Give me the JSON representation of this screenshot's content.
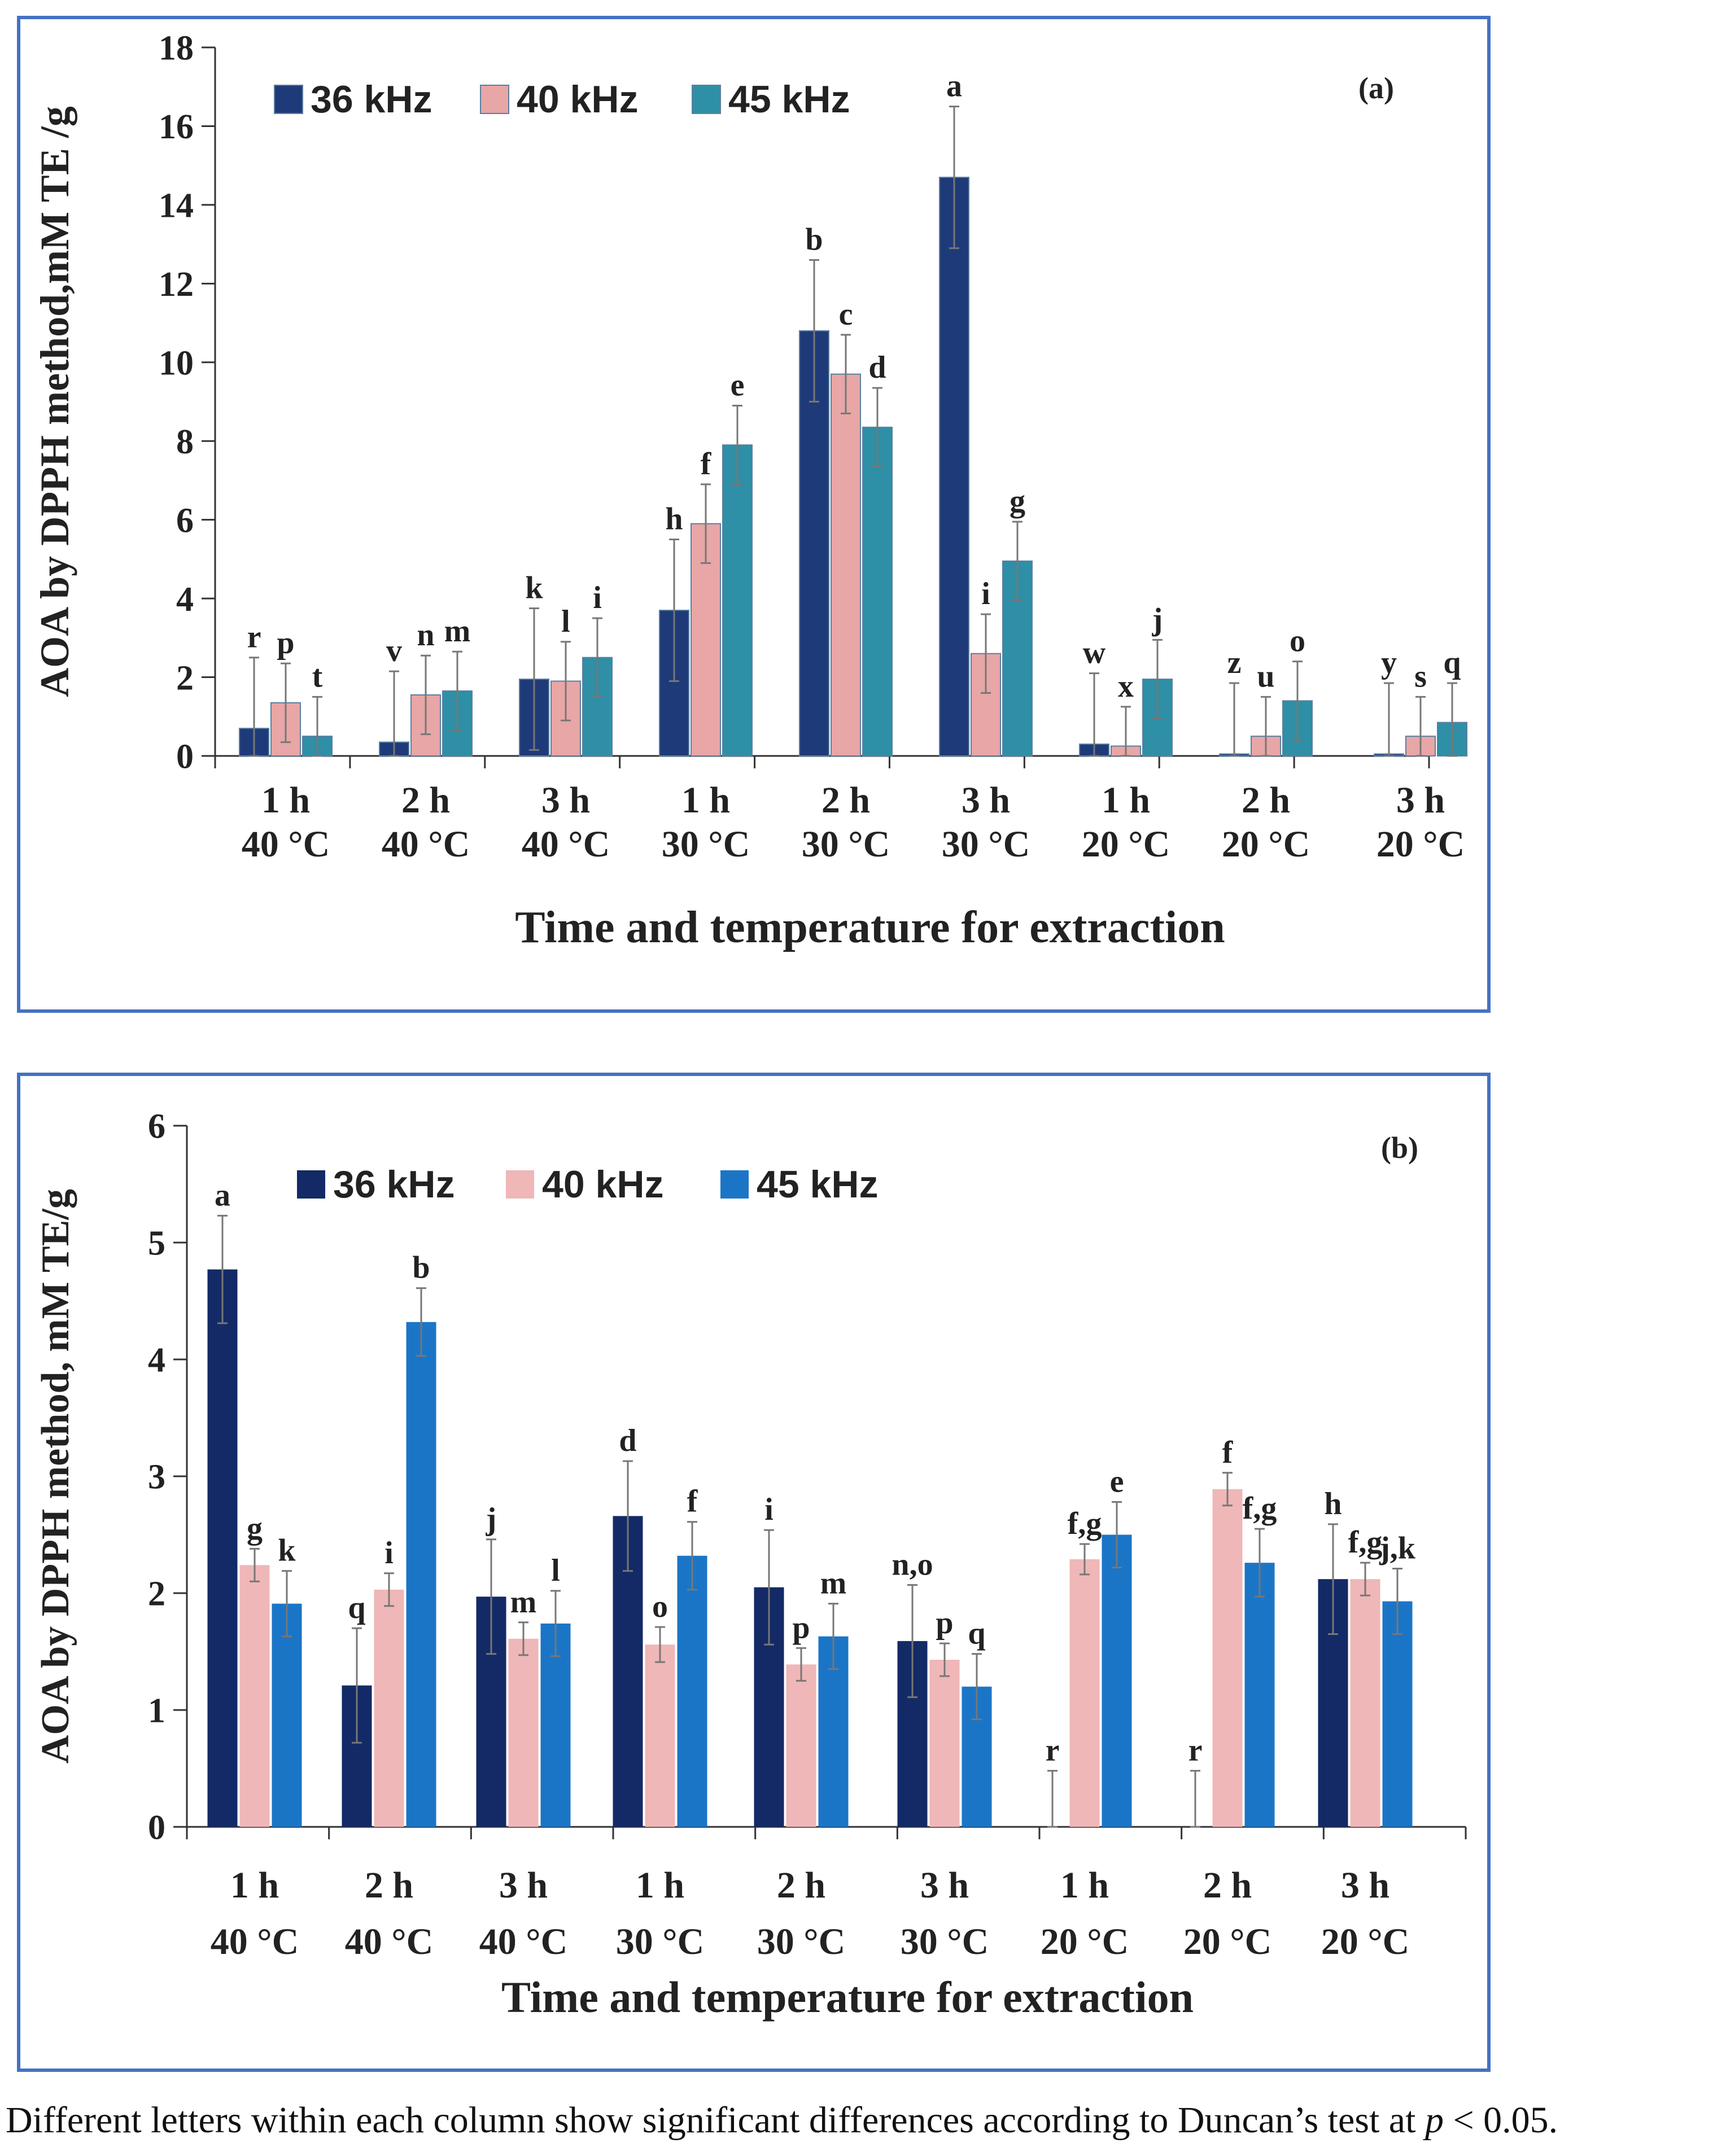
{
  "chart_data": [
    {
      "type": "bar",
      "panel_label": "(a)",
      "ylabel": "AOA by DPPH method,mM TE /g",
      "xlabel": "Time and temperature for extraction",
      "ylim": [
        0,
        18
      ],
      "yticks": [
        0,
        2,
        4,
        6,
        8,
        10,
        12,
        14,
        16,
        18
      ],
      "legend_position": "top-left",
      "categories": [
        {
          "time": "1 h",
          "temp": "40 °C"
        },
        {
          "time": "2 h",
          "temp": "40 °C"
        },
        {
          "time": "3 h",
          "temp": "40 °C"
        },
        {
          "time": "1 h",
          "temp": "30 °C"
        },
        {
          "time": "2 h",
          "temp": "30 °C"
        },
        {
          "time": "3 h",
          "temp": "30 °C"
        },
        {
          "time": "1 h",
          "temp": "20 °C"
        },
        {
          "time": "2 h",
          "temp": "20 °C"
        },
        {
          "time": "3 h",
          "temp": "20 °C"
        }
      ],
      "series": [
        {
          "name": "36 kHz",
          "color": "#1F3A78",
          "values": [
            0.7,
            0.35,
            1.95,
            3.7,
            10.8,
            14.7,
            0.3,
            0.05,
            0.05
          ],
          "errors": [
            1.8,
            1.8,
            1.8,
            1.8,
            1.8,
            1.8,
            1.8,
            1.8,
            1.8
          ],
          "letters": [
            "r",
            "v",
            "k",
            "h",
            "b",
            "a",
            "w",
            "z",
            "y"
          ]
        },
        {
          "name": "40 kHz",
          "color": "#E8A6A6",
          "values": [
            1.35,
            1.55,
            1.9,
            5.9,
            9.7,
            2.6,
            0.25,
            0.5,
            0.5
          ],
          "errors": [
            1.0,
            1.0,
            1.0,
            1.0,
            1.0,
            1.0,
            1.0,
            1.0,
            1.0
          ],
          "letters": [
            "p",
            "n",
            "l",
            "f",
            "c",
            "i",
            "x",
            "u",
            "s"
          ]
        },
        {
          "name": "45 kHz",
          "color": "#2E8FA6",
          "values": [
            0.5,
            1.65,
            2.5,
            7.9,
            8.35,
            4.95,
            1.95,
            1.4,
            0.85
          ],
          "errors": [
            1.0,
            1.0,
            1.0,
            1.0,
            1.0,
            1.0,
            1.0,
            1.0,
            1.0
          ],
          "letters": [
            "t",
            "m",
            "i",
            "e",
            "d",
            "g",
            "j",
            "o",
            "q"
          ]
        }
      ]
    },
    {
      "type": "bar",
      "panel_label": "(b)",
      "ylabel": "AOA by DPPH method, mM TE/g",
      "xlabel": "Time and temperature for extraction",
      "ylim": [
        0,
        6
      ],
      "yticks": [
        0,
        1,
        2,
        3,
        4,
        5,
        6
      ],
      "legend_position": "top-left",
      "categories": [
        {
          "time": "1 h",
          "temp": "40 °C"
        },
        {
          "time": "2 h",
          "temp": "40 °C"
        },
        {
          "time": "3 h",
          "temp": "40 °C"
        },
        {
          "time": "1 h",
          "temp": "30 °C"
        },
        {
          "time": "2 h",
          "temp": "30 °C"
        },
        {
          "time": "3 h",
          "temp": "30 °C"
        },
        {
          "time": "1 h",
          "temp": "20 °C"
        },
        {
          "time": "2 h",
          "temp": "20 °C"
        },
        {
          "time": "3 h",
          "temp": "20 °C"
        }
      ],
      "series": [
        {
          "name": "36 kHz",
          "color": "#142A66",
          "values": [
            4.77,
            1.21,
            1.97,
            2.66,
            2.05,
            1.59,
            0.0,
            0.0,
            2.12
          ],
          "errors": [
            0.46,
            0.49,
            0.49,
            0.47,
            0.49,
            0.48,
            0.48,
            0.48,
            0.47
          ],
          "letters": [
            "a",
            "q",
            "j",
            "d",
            "i",
            "n,o",
            "r",
            "r",
            "h"
          ]
        },
        {
          "name": "40 kHz",
          "color": "#EFB7B7",
          "values": [
            2.24,
            2.03,
            1.61,
            1.56,
            1.39,
            1.43,
            2.29,
            2.89,
            2.12
          ],
          "errors": [
            0.14,
            0.14,
            0.14,
            0.15,
            0.14,
            0.14,
            0.13,
            0.14,
            0.14
          ],
          "letters": [
            "g",
            "i",
            "m",
            "o",
            "p",
            "p",
            "f,g",
            "f",
            "f,g"
          ]
        },
        {
          "name": "45 kHz",
          "color": "#1B75C6",
          "values": [
            1.91,
            4.32,
            1.74,
            2.32,
            1.63,
            1.2,
            2.5,
            2.26,
            1.93
          ],
          "errors": [
            0.28,
            0.29,
            0.28,
            0.29,
            0.28,
            0.28,
            0.28,
            0.29,
            0.28
          ],
          "letters": [
            "k",
            "b",
            "l",
            "f",
            "m",
            "q",
            "e",
            "f,g",
            "j,k"
          ]
        }
      ]
    }
  ],
  "caption": {
    "text": "Different letters within each column show significant differences according to Duncan’s test at",
    "p_symbol": "p",
    "threshold": "< 0.05."
  }
}
